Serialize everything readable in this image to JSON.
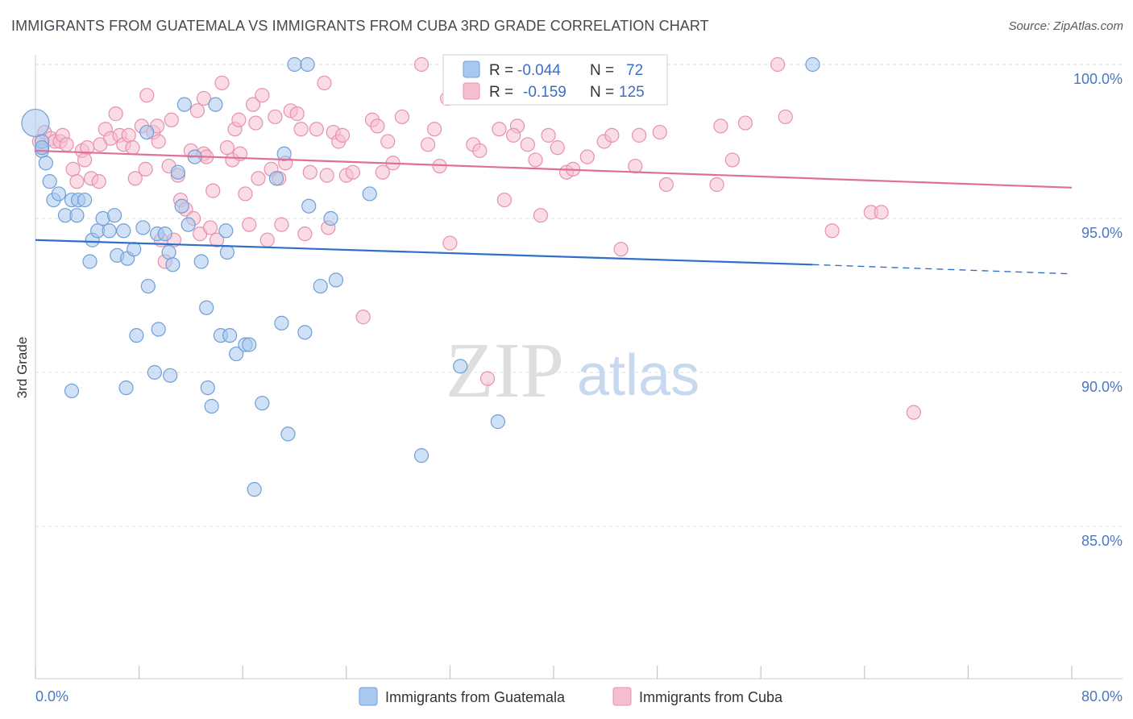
{
  "title": "IMMIGRANTS FROM GUATEMALA VS IMMIGRANTS FROM CUBA 3RD GRADE CORRELATION CHART",
  "source": "Source: ZipAtlas.com",
  "watermark": {
    "part1": "ZIP",
    "part2": "atlas"
  },
  "colors": {
    "guatemala_fill": "#a9c8ef",
    "guatemala_stroke": "#6f9fd8",
    "guatemala_line": "#2f6fc9",
    "cuba_fill": "#f5bfd0",
    "cuba_stroke": "#e890ad",
    "cuba_line": "#e06f98",
    "grid": "#dcdcdc",
    "tick_text": "#4a78c2"
  },
  "legend_stats": [
    {
      "r_label": "R =",
      "r_value": "-0.044",
      "n_label": "N =",
      "n_value": "72"
    },
    {
      "r_label": "R =",
      "r_value": "-0.159",
      "n_label": "N =",
      "n_value": "125"
    }
  ],
  "chart_data": {
    "type": "scatter",
    "title": "IMMIGRANTS FROM GUATEMALA VS IMMIGRANTS FROM CUBA 3RD GRADE CORRELATION CHART",
    "xlabel": "",
    "ylabel": "3rd Grade",
    "xlim": [
      0,
      80
    ],
    "ylim": [
      80.5,
      100.8
    ],
    "x_tick_labels": [
      "0.0%",
      "80.0%"
    ],
    "y_ticks": [
      85,
      90,
      95,
      100
    ],
    "y_tick_labels": [
      "85.0%",
      "90.0%",
      "95.0%",
      "100.0%"
    ],
    "grid": true,
    "legend_position": "bottom",
    "series": [
      {
        "name": "Immigrants from Guatemala",
        "trend": {
          "x0": 0,
          "y0": 94.3,
          "x1": 60,
          "y1": 93.5,
          "dash_to_x": 80,
          "dash_to_y": 93.2
        },
        "points": [
          [
            0.0,
            98.1
          ],
          [
            0.5,
            97.2
          ],
          [
            0.5,
            97.5
          ],
          [
            0.8,
            96.8
          ],
          [
            1.1,
            96.2
          ],
          [
            1.4,
            95.6
          ],
          [
            1.8,
            95.8
          ],
          [
            2.3,
            95.1
          ],
          [
            2.8,
            95.6
          ],
          [
            3.2,
            95.1
          ],
          [
            3.3,
            95.6
          ],
          [
            3.8,
            95.6
          ],
          [
            4.2,
            93.6
          ],
          [
            4.4,
            94.3
          ],
          [
            4.8,
            94.6
          ],
          [
            5.2,
            95.0
          ],
          [
            5.7,
            94.6
          ],
          [
            6.1,
            95.1
          ],
          [
            6.3,
            93.8
          ],
          [
            6.8,
            94.6
          ],
          [
            7.1,
            93.7
          ],
          [
            7.6,
            94.0
          ],
          [
            7.8,
            91.2
          ],
          [
            8.3,
            94.7
          ],
          [
            8.6,
            97.8
          ],
          [
            8.7,
            92.8
          ],
          [
            9.4,
            94.5
          ],
          [
            9.5,
            91.4
          ],
          [
            10.0,
            94.5
          ],
          [
            10.3,
            93.9
          ],
          [
            10.4,
            89.9
          ],
          [
            10.6,
            93.5
          ],
          [
            11.0,
            96.5
          ],
          [
            11.3,
            95.4
          ],
          [
            11.5,
            98.7
          ],
          [
            11.8,
            94.8
          ],
          [
            12.3,
            97.0
          ],
          [
            12.8,
            93.6
          ],
          [
            13.2,
            92.1
          ],
          [
            13.3,
            89.5
          ],
          [
            13.6,
            88.9
          ],
          [
            13.9,
            98.7
          ],
          [
            14.3,
            91.2
          ],
          [
            14.7,
            94.6
          ],
          [
            14.8,
            93.9
          ],
          [
            15.0,
            91.2
          ],
          [
            15.5,
            90.6
          ],
          [
            16.2,
            90.9
          ],
          [
            16.5,
            90.9
          ],
          [
            16.9,
            86.2
          ],
          [
            17.5,
            89.0
          ],
          [
            18.6,
            96.3
          ],
          [
            19.0,
            91.6
          ],
          [
            19.2,
            97.1
          ],
          [
            19.5,
            88.0
          ],
          [
            20.0,
            100.0
          ],
          [
            20.8,
            91.3
          ],
          [
            21.1,
            95.4
          ],
          [
            21.0,
            100.0
          ],
          [
            22.0,
            92.8
          ],
          [
            22.8,
            95.0
          ],
          [
            23.2,
            93.0
          ],
          [
            25.8,
            95.8
          ],
          [
            29.8,
            87.3
          ],
          [
            32.8,
            90.2
          ],
          [
            35.7,
            88.4
          ],
          [
            36.6,
            100.0
          ],
          [
            60.0,
            100.0
          ],
          [
            2.8,
            89.4
          ],
          [
            9.2,
            90.0
          ],
          [
            0.5,
            97.3
          ],
          [
            7.0,
            89.5
          ]
        ]
      },
      {
        "name": "Immigrants from Cuba",
        "trend": {
          "x0": 0,
          "y0": 97.2,
          "x1": 80,
          "y1": 96.0
        },
        "points": [
          [
            0.3,
            97.5
          ],
          [
            0.5,
            97.3
          ],
          [
            0.7,
            97.8
          ],
          [
            1.2,
            97.6
          ],
          [
            1.5,
            97.5
          ],
          [
            1.9,
            97.5
          ],
          [
            2.1,
            97.7
          ],
          [
            2.4,
            97.4
          ],
          [
            2.9,
            96.6
          ],
          [
            3.2,
            96.2
          ],
          [
            3.6,
            97.2
          ],
          [
            4.0,
            97.3
          ],
          [
            4.3,
            96.3
          ],
          [
            4.9,
            96.2
          ],
          [
            5.0,
            97.4
          ],
          [
            5.4,
            97.9
          ],
          [
            5.8,
            97.6
          ],
          [
            6.2,
            98.4
          ],
          [
            6.5,
            97.7
          ],
          [
            6.8,
            97.4
          ],
          [
            7.2,
            97.7
          ],
          [
            7.5,
            97.3
          ],
          [
            7.7,
            96.3
          ],
          [
            8.2,
            98.0
          ],
          [
            8.5,
            96.6
          ],
          [
            8.6,
            99.0
          ],
          [
            9.1,
            97.8
          ],
          [
            9.4,
            98.0
          ],
          [
            9.7,
            94.3
          ],
          [
            10.0,
            93.6
          ],
          [
            10.3,
            96.7
          ],
          [
            10.5,
            98.2
          ],
          [
            10.7,
            94.3
          ],
          [
            11.0,
            96.4
          ],
          [
            11.2,
            95.6
          ],
          [
            11.6,
            95.3
          ],
          [
            12.0,
            97.2
          ],
          [
            12.2,
            95.0
          ],
          [
            12.5,
            98.5
          ],
          [
            12.7,
            94.5
          ],
          [
            13.0,
            97.1
          ],
          [
            13.2,
            97.0
          ],
          [
            13.5,
            94.7
          ],
          [
            13.7,
            95.9
          ],
          [
            14.0,
            94.3
          ],
          [
            14.4,
            99.4
          ],
          [
            14.8,
            97.3
          ],
          [
            15.2,
            96.9
          ],
          [
            15.4,
            97.9
          ],
          [
            15.7,
            98.2
          ],
          [
            15.8,
            97.1
          ],
          [
            16.2,
            95.8
          ],
          [
            16.5,
            94.8
          ],
          [
            16.8,
            98.7
          ],
          [
            17.2,
            96.3
          ],
          [
            17.5,
            99.0
          ],
          [
            17.9,
            94.3
          ],
          [
            18.2,
            96.6
          ],
          [
            18.5,
            98.3
          ],
          [
            18.8,
            96.3
          ],
          [
            19.0,
            94.8
          ],
          [
            19.3,
            96.8
          ],
          [
            19.7,
            98.5
          ],
          [
            20.2,
            98.4
          ],
          [
            20.5,
            97.9
          ],
          [
            20.8,
            94.5
          ],
          [
            21.2,
            96.5
          ],
          [
            21.7,
            97.9
          ],
          [
            22.3,
            99.4
          ],
          [
            22.6,
            94.7
          ],
          [
            23.0,
            97.8
          ],
          [
            23.4,
            97.5
          ],
          [
            23.7,
            97.7
          ],
          [
            24.0,
            96.4
          ],
          [
            24.5,
            96.5
          ],
          [
            25.3,
            91.8
          ],
          [
            26.0,
            98.2
          ],
          [
            26.8,
            96.5
          ],
          [
            27.2,
            97.5
          ],
          [
            27.6,
            96.8
          ],
          [
            28.3,
            98.3
          ],
          [
            29.8,
            100.0
          ],
          [
            30.3,
            97.4
          ],
          [
            30.8,
            97.9
          ],
          [
            31.2,
            96.7
          ],
          [
            32.0,
            94.2
          ],
          [
            33.8,
            97.4
          ],
          [
            34.3,
            97.2
          ],
          [
            34.9,
            89.8
          ],
          [
            35.8,
            97.9
          ],
          [
            36.2,
            95.6
          ],
          [
            37.2,
            98.0
          ],
          [
            38.0,
            97.4
          ],
          [
            38.6,
            96.9
          ],
          [
            39.0,
            95.1
          ],
          [
            39.6,
            97.7
          ],
          [
            40.3,
            97.3
          ],
          [
            41.0,
            96.5
          ],
          [
            41.5,
            96.6
          ],
          [
            42.6,
            97.0
          ],
          [
            43.9,
            97.5
          ],
          [
            44.5,
            97.7
          ],
          [
            45.2,
            94.0
          ],
          [
            46.3,
            96.7
          ],
          [
            46.6,
            97.7
          ],
          [
            48.2,
            97.8
          ],
          [
            48.7,
            96.1
          ],
          [
            52.6,
            96.1
          ],
          [
            52.9,
            98.0
          ],
          [
            53.8,
            96.9
          ],
          [
            54.8,
            98.1
          ],
          [
            57.3,
            100.0
          ],
          [
            57.9,
            98.3
          ],
          [
            61.5,
            94.6
          ],
          [
            64.5,
            95.2
          ],
          [
            65.3,
            95.2
          ],
          [
            67.8,
            88.7
          ],
          [
            31.8,
            98.9
          ],
          [
            13.0,
            98.9
          ],
          [
            22.5,
            96.4
          ],
          [
            9.5,
            97.5
          ],
          [
            26.4,
            98.0
          ],
          [
            36.9,
            97.7
          ],
          [
            3.8,
            96.9
          ],
          [
            17.0,
            98.1
          ]
        ]
      }
    ]
  }
}
